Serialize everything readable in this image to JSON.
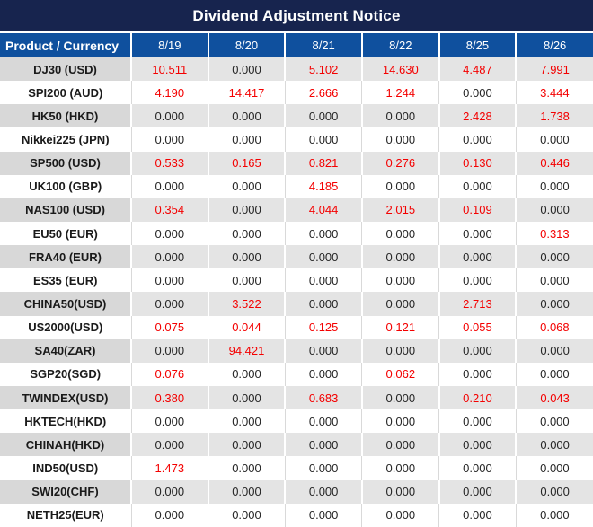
{
  "title": "Dividend Adjustment Notice",
  "table": {
    "header": {
      "product_label": "Product / Currency",
      "dates": [
        "8/19",
        "8/20",
        "8/21",
        "8/22",
        "8/25",
        "8/26"
      ]
    },
    "zero_display": "0.000",
    "rows": [
      {
        "product": "DJ30 (USD)",
        "values": [
          "10.511",
          "0.000",
          "5.102",
          "14.630",
          "4.487",
          "7.991"
        ]
      },
      {
        "product": "SPI200 (AUD)",
        "values": [
          "4.190",
          "14.417",
          "2.666",
          "1.244",
          "0.000",
          "3.444"
        ]
      },
      {
        "product": "HK50 (HKD)",
        "values": [
          "0.000",
          "0.000",
          "0.000",
          "0.000",
          "2.428",
          "1.738"
        ]
      },
      {
        "product": "Nikkei225 (JPN)",
        "values": [
          "0.000",
          "0.000",
          "0.000",
          "0.000",
          "0.000",
          "0.000"
        ]
      },
      {
        "product": "SP500 (USD)",
        "values": [
          "0.533",
          "0.165",
          "0.821",
          "0.276",
          "0.130",
          "0.446"
        ]
      },
      {
        "product": "UK100 (GBP)",
        "values": [
          "0.000",
          "0.000",
          "4.185",
          "0.000",
          "0.000",
          "0.000"
        ]
      },
      {
        "product": "NAS100 (USD)",
        "values": [
          "0.354",
          "0.000",
          "4.044",
          "2.015",
          "0.109",
          "0.000"
        ]
      },
      {
        "product": "EU50 (EUR)",
        "values": [
          "0.000",
          "0.000",
          "0.000",
          "0.000",
          "0.000",
          "0.313"
        ]
      },
      {
        "product": "FRA40 (EUR)",
        "values": [
          "0.000",
          "0.000",
          "0.000",
          "0.000",
          "0.000",
          "0.000"
        ]
      },
      {
        "product": "ES35 (EUR)",
        "values": [
          "0.000",
          "0.000",
          "0.000",
          "0.000",
          "0.000",
          "0.000"
        ]
      },
      {
        "product": "CHINA50(USD)",
        "values": [
          "0.000",
          "3.522",
          "0.000",
          "0.000",
          "2.713",
          "0.000"
        ]
      },
      {
        "product": "US2000(USD)",
        "values": [
          "0.075",
          "0.044",
          "0.125",
          "0.121",
          "0.055",
          "0.068"
        ]
      },
      {
        "product": "SA40(ZAR)",
        "values": [
          "0.000",
          "94.421",
          "0.000",
          "0.000",
          "0.000",
          "0.000"
        ]
      },
      {
        "product": "SGP20(SGD)",
        "values": [
          "0.076",
          "0.000",
          "0.000",
          "0.062",
          "0.000",
          "0.000"
        ]
      },
      {
        "product": "TWINDEX(USD)",
        "values": [
          "0.380",
          "0.000",
          "0.683",
          "0.000",
          "0.210",
          "0.043"
        ]
      },
      {
        "product": "HKTECH(HKD)",
        "values": [
          "0.000",
          "0.000",
          "0.000",
          "0.000",
          "0.000",
          "0.000"
        ]
      },
      {
        "product": "CHINAH(HKD)",
        "values": [
          "0.000",
          "0.000",
          "0.000",
          "0.000",
          "0.000",
          "0.000"
        ]
      },
      {
        "product": "IND50(USD)",
        "values": [
          "1.473",
          "0.000",
          "0.000",
          "0.000",
          "0.000",
          "0.000"
        ]
      },
      {
        "product": "SWI20(CHF)",
        "values": [
          "0.000",
          "0.000",
          "0.000",
          "0.000",
          "0.000",
          "0.000"
        ]
      },
      {
        "product": "NETH25(EUR)",
        "values": [
          "0.000",
          "0.000",
          "0.000",
          "0.000",
          "0.000",
          "0.000"
        ]
      }
    ]
  },
  "colors": {
    "title_bg": "#17244e",
    "header_bg": "#0f509e",
    "stripe_label_bg": "#d8d8d8",
    "stripe_value_bg": "#e4e4e4",
    "nonzero_value": "#f40000",
    "zero_value": "#262626"
  }
}
